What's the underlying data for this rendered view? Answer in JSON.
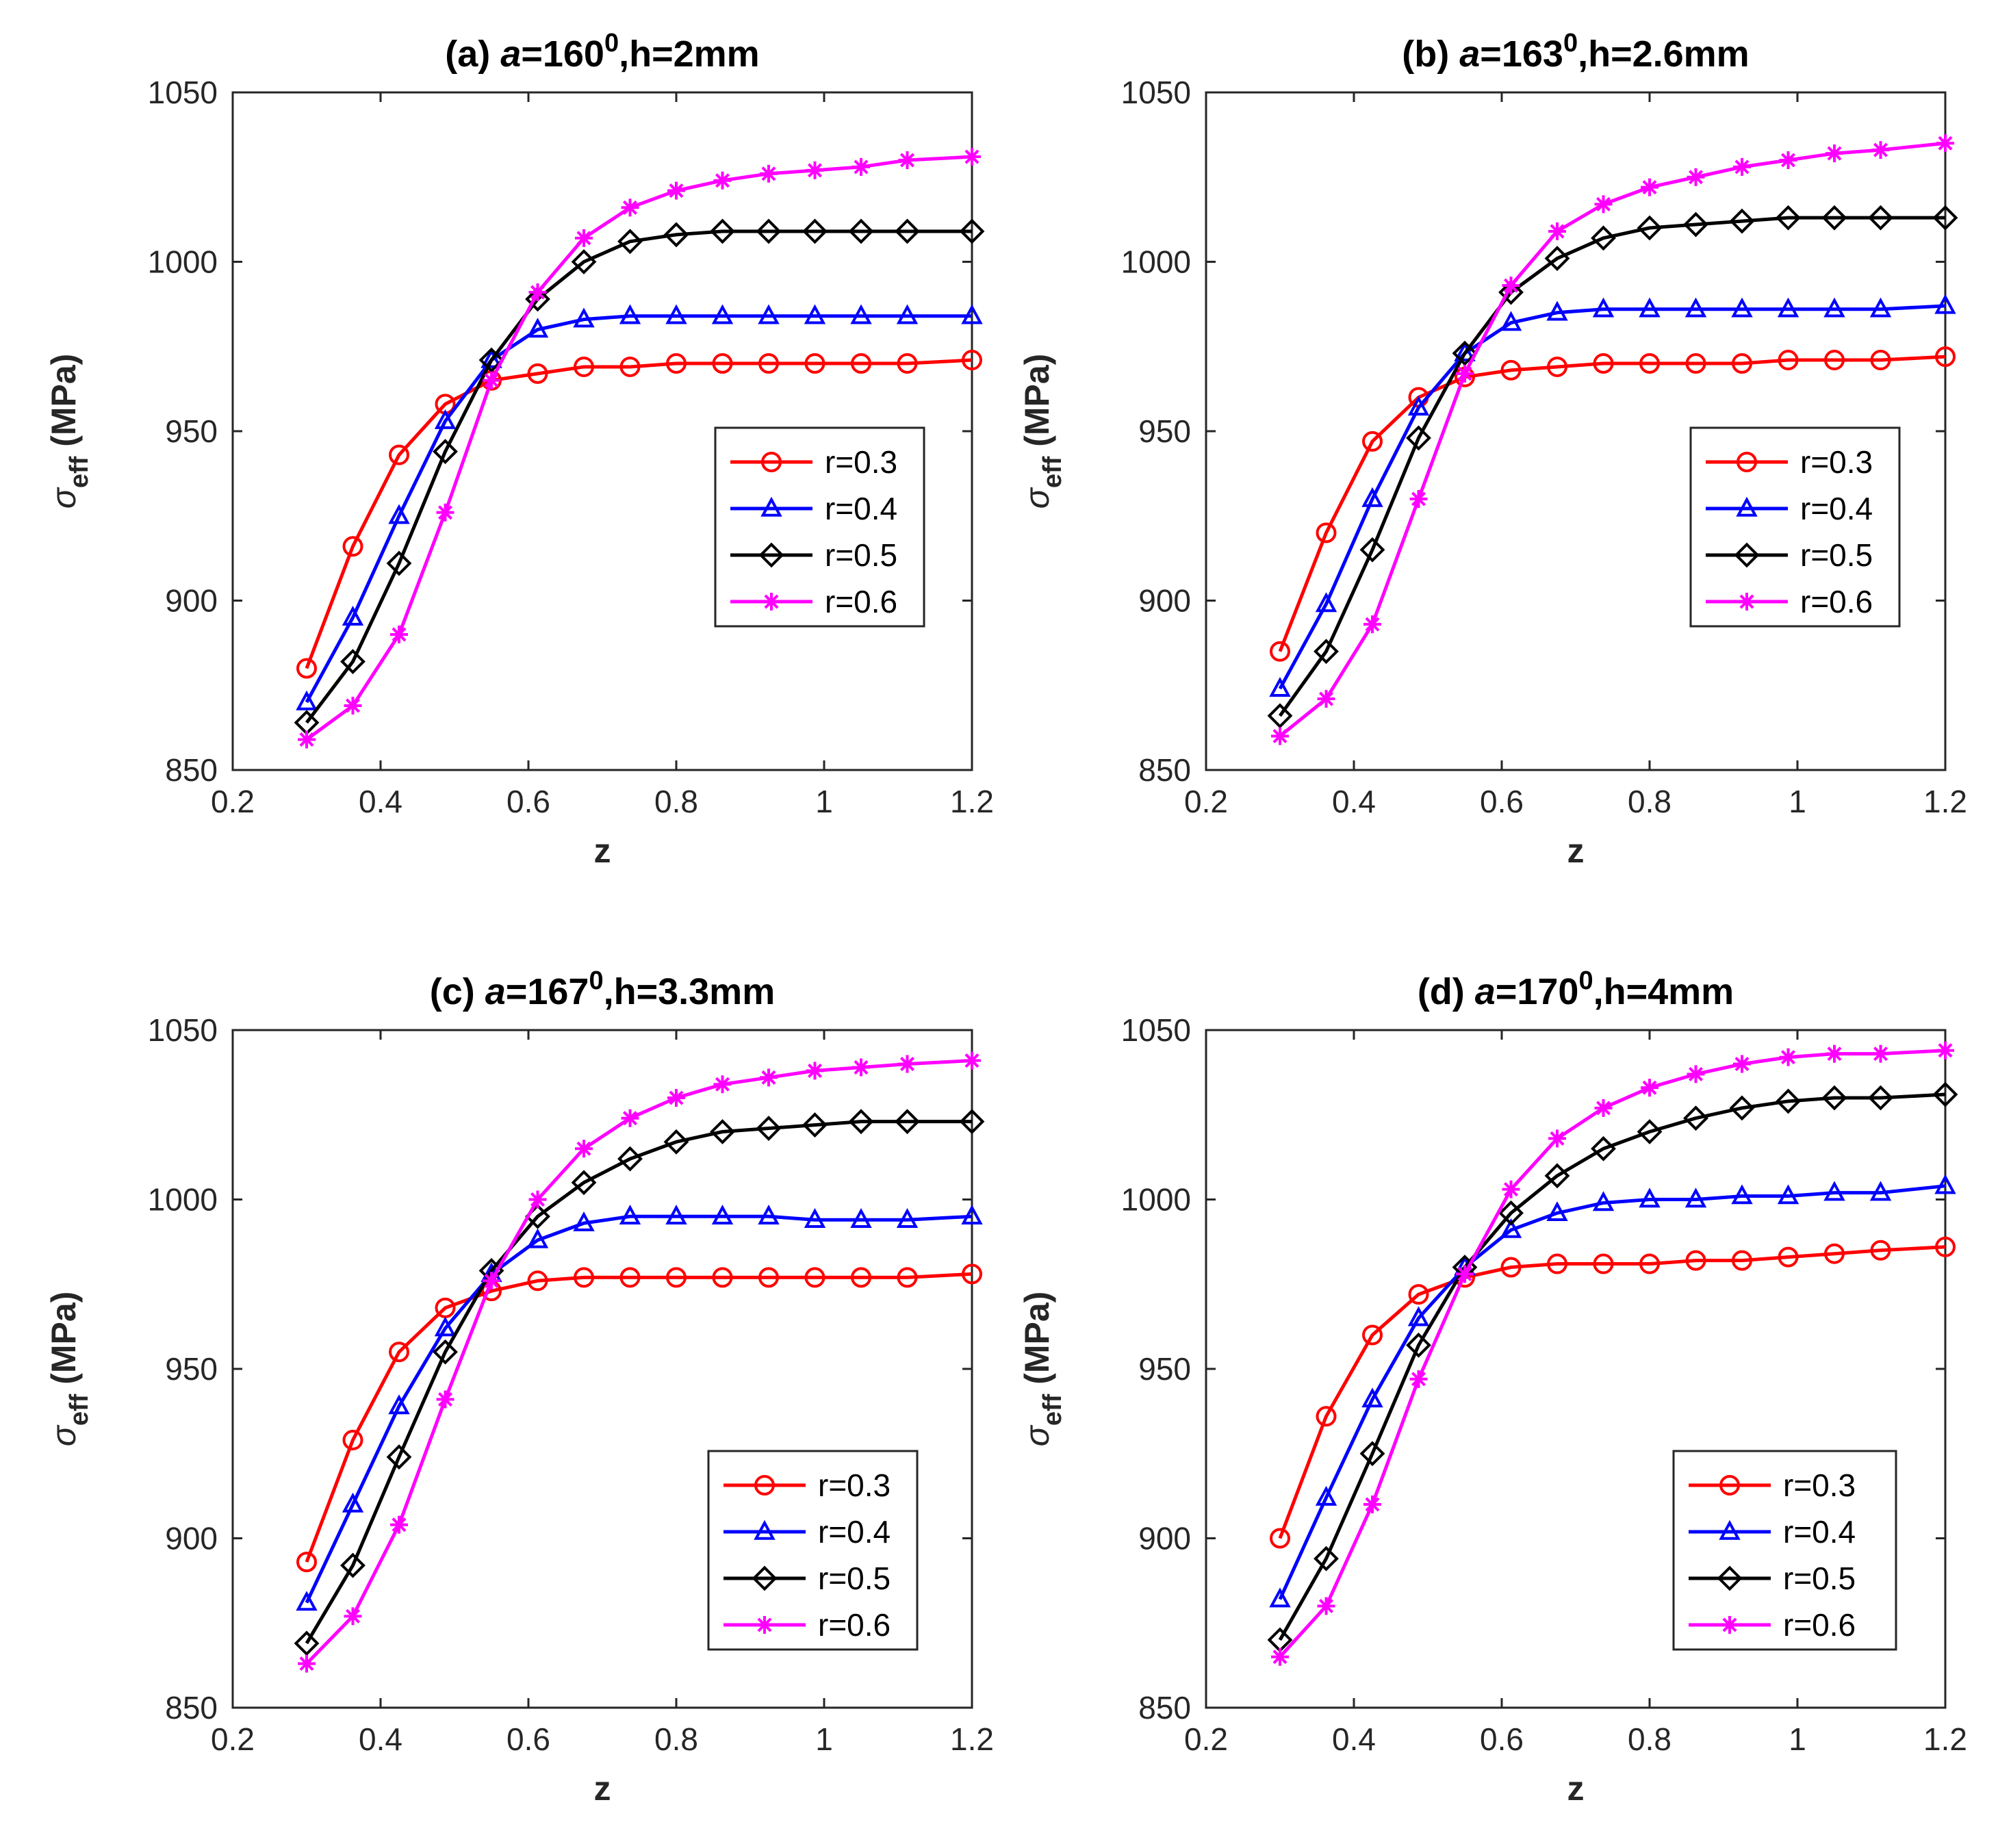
{
  "chart_data": [
    {
      "type": "line",
      "panel": "(a)",
      "title_prefix": "(a)",
      "title_param": "a",
      "title_value": "=160",
      "title_sup": "0",
      "title_suffix": ",h=2mm",
      "xlabel": "z",
      "ylabel_symbol": "σ",
      "ylabel_sub": "eff",
      "ylabel_unit": "(MPa)",
      "xlim": [
        0.2,
        1.2
      ],
      "ylim": [
        850,
        1050
      ],
      "xticks": [
        "0.2",
        "0.4",
        "0.6",
        "0.8",
        "1",
        "1.2"
      ],
      "yticks": [
        "850",
        "900",
        "950",
        "1000",
        "1050"
      ],
      "x": [
        0.3,
        0.3625,
        0.425,
        0.4875,
        0.55,
        0.6125,
        0.675,
        0.7375,
        0.8,
        0.8625,
        0.925,
        0.9875,
        1.05,
        1.1125,
        1.2
      ],
      "series": [
        {
          "name": "r=0.3",
          "color": "#ff0000",
          "marker": "circle",
          "values": [
            880,
            916,
            943,
            958,
            965,
            967,
            969,
            969,
            970,
            970,
            970,
            970,
            970,
            970,
            971
          ]
        },
        {
          "name": "r=0.4",
          "color": "#0000ff",
          "marker": "triangle",
          "values": [
            870,
            895,
            925,
            953,
            971,
            980,
            983,
            984,
            984,
            984,
            984,
            984,
            984,
            984,
            984
          ]
        },
        {
          "name": "r=0.5",
          "color": "#000000",
          "marker": "diamond",
          "values": [
            864,
            882,
            911,
            944,
            971,
            989,
            1000,
            1006,
            1008,
            1009,
            1009,
            1009,
            1009,
            1009,
            1009
          ]
        },
        {
          "name": "r=0.6",
          "color": "#ff00ff",
          "marker": "star",
          "values": [
            859,
            869,
            890,
            926,
            965,
            991,
            1007,
            1016,
            1021,
            1024,
            1026,
            1027,
            1028,
            1030,
            1031
          ]
        }
      ]
    },
    {
      "type": "line",
      "panel": "(b)",
      "title_prefix": "(b)",
      "title_param": "a",
      "title_value": "=163",
      "title_sup": "0",
      "title_suffix": ",h=2.6mm",
      "xlabel": "z",
      "ylabel_symbol": "σ",
      "ylabel_sub": "eff",
      "ylabel_unit": "(MPa)",
      "xlim": [
        0.2,
        1.2
      ],
      "ylim": [
        850,
        1050
      ],
      "xticks": [
        "0.2",
        "0.4",
        "0.6",
        "0.8",
        "1",
        "1.2"
      ],
      "yticks": [
        "850",
        "900",
        "950",
        "1000",
        "1050"
      ],
      "x": [
        0.3,
        0.3625,
        0.425,
        0.4875,
        0.55,
        0.6125,
        0.675,
        0.7375,
        0.8,
        0.8625,
        0.925,
        0.9875,
        1.05,
        1.1125,
        1.2
      ],
      "series": [
        {
          "name": "r=0.3",
          "color": "#ff0000",
          "marker": "circle",
          "values": [
            885,
            920,
            947,
            960,
            966,
            968,
            969,
            970,
            970,
            970,
            970,
            971,
            971,
            971,
            972
          ]
        },
        {
          "name": "r=0.4",
          "color": "#0000ff",
          "marker": "triangle",
          "values": [
            874,
            899,
            930,
            957,
            973,
            982,
            985,
            986,
            986,
            986,
            986,
            986,
            986,
            986,
            987
          ]
        },
        {
          "name": "r=0.5",
          "color": "#000000",
          "marker": "diamond",
          "values": [
            866,
            885,
            915,
            948,
            973,
            991,
            1001,
            1007,
            1010,
            1011,
            1012,
            1013,
            1013,
            1013,
            1013
          ]
        },
        {
          "name": "r=0.6",
          "color": "#ff00ff",
          "marker": "star",
          "values": [
            860,
            871,
            893,
            930,
            967,
            993,
            1009,
            1017,
            1022,
            1025,
            1028,
            1030,
            1032,
            1033,
            1035
          ]
        }
      ]
    },
    {
      "type": "line",
      "panel": "(c)",
      "title_prefix": "(c)",
      "title_param": "a",
      "title_value": "=167",
      "title_sup": "0",
      "title_suffix": ",h=3.3mm",
      "xlabel": "z",
      "ylabel_symbol": "σ",
      "ylabel_sub": "eff",
      "ylabel_unit": "(MPa)",
      "xlim": [
        0.2,
        1.2
      ],
      "ylim": [
        850,
        1050
      ],
      "xticks": [
        "0.2",
        "0.4",
        "0.6",
        "0.8",
        "1",
        "1.2"
      ],
      "yticks": [
        "850",
        "900",
        "950",
        "1000",
        "1050"
      ],
      "x": [
        0.3,
        0.3625,
        0.425,
        0.4875,
        0.55,
        0.6125,
        0.675,
        0.7375,
        0.8,
        0.8625,
        0.925,
        0.9875,
        1.05,
        1.1125,
        1.2
      ],
      "series": [
        {
          "name": "r=0.3",
          "color": "#ff0000",
          "marker": "circle",
          "values": [
            893,
            929,
            955,
            968,
            973,
            976,
            977,
            977,
            977,
            977,
            977,
            977,
            977,
            977,
            978
          ]
        },
        {
          "name": "r=0.4",
          "color": "#0000ff",
          "marker": "triangle",
          "values": [
            881,
            910,
            939,
            962,
            978,
            988,
            993,
            995,
            995,
            995,
            995,
            994,
            994,
            994,
            995
          ]
        },
        {
          "name": "r=0.5",
          "color": "#000000",
          "marker": "diamond",
          "values": [
            869,
            892,
            924,
            955,
            979,
            995,
            1005,
            1012,
            1017,
            1020,
            1021,
            1022,
            1023,
            1023,
            1023
          ]
        },
        {
          "name": "r=0.6",
          "color": "#ff00ff",
          "marker": "star",
          "values": [
            863,
            877,
            904,
            941,
            976,
            1000,
            1015,
            1024,
            1030,
            1034,
            1036,
            1038,
            1039,
            1040,
            1041
          ]
        }
      ]
    },
    {
      "type": "line",
      "panel": "(d)",
      "title_prefix": "(d)",
      "title_param": "a",
      "title_value": "=170",
      "title_sup": "0",
      "title_suffix": ",h=4mm",
      "xlabel": "z",
      "ylabel_symbol": "σ",
      "ylabel_sub": "eff",
      "ylabel_unit": "(MPa)",
      "xlim": [
        0.2,
        1.2
      ],
      "ylim": [
        850,
        1050
      ],
      "xticks": [
        "0.2",
        "0.4",
        "0.6",
        "0.8",
        "1",
        "1.2"
      ],
      "yticks": [
        "850",
        "900",
        "950",
        "1000",
        "1050"
      ],
      "x": [
        0.3,
        0.3625,
        0.425,
        0.4875,
        0.55,
        0.6125,
        0.675,
        0.7375,
        0.8,
        0.8625,
        0.925,
        0.9875,
        1.05,
        1.1125,
        1.2
      ],
      "series": [
        {
          "name": "r=0.3",
          "color": "#ff0000",
          "marker": "circle",
          "values": [
            900,
            936,
            960,
            972,
            977,
            980,
            981,
            981,
            981,
            982,
            982,
            983,
            984,
            985,
            986
          ]
        },
        {
          "name": "r=0.4",
          "color": "#0000ff",
          "marker": "triangle",
          "values": [
            882,
            912,
            941,
            965,
            980,
            991,
            996,
            999,
            1000,
            1000,
            1001,
            1001,
            1002,
            1002,
            1004
          ]
        },
        {
          "name": "r=0.5",
          "color": "#000000",
          "marker": "diamond",
          "values": [
            870,
            894,
            925,
            957,
            980,
            996,
            1007,
            1015,
            1020,
            1024,
            1027,
            1029,
            1030,
            1030,
            1031
          ]
        },
        {
          "name": "r=0.6",
          "color": "#ff00ff",
          "marker": "star",
          "values": [
            865,
            880,
            910,
            947,
            978,
            1003,
            1018,
            1027,
            1033,
            1037,
            1040,
            1042,
            1043,
            1043,
            1044
          ]
        }
      ]
    }
  ]
}
